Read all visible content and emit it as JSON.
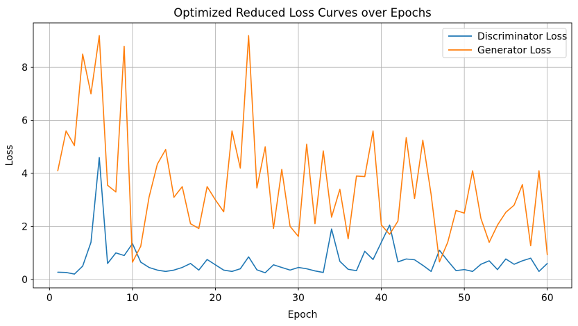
{
  "chart_data": {
    "type": "line",
    "title": "Optimized Reduced Loss Curves over Epochs",
    "xlabel": "Epoch",
    "ylabel": "Loss",
    "x": [
      1,
      2,
      3,
      4,
      5,
      6,
      7,
      8,
      9,
      10,
      11,
      12,
      13,
      14,
      15,
      16,
      17,
      18,
      19,
      20,
      21,
      22,
      23,
      24,
      25,
      26,
      27,
      28,
      29,
      30,
      31,
      32,
      33,
      34,
      35,
      36,
      37,
      38,
      39,
      40,
      41,
      42,
      43,
      44,
      45,
      46,
      47,
      48,
      49,
      50,
      51,
      52,
      53,
      54,
      55,
      56,
      57,
      58,
      59,
      60
    ],
    "series": [
      {
        "name": "Discriminator Loss",
        "color": "#1f77b4",
        "values": [
          0.27,
          0.26,
          0.2,
          0.5,
          1.4,
          4.6,
          0.6,
          1.0,
          0.9,
          1.35,
          0.65,
          0.45,
          0.35,
          0.3,
          0.35,
          0.45,
          0.6,
          0.35,
          0.75,
          0.55,
          0.35,
          0.3,
          0.4,
          0.85,
          0.36,
          0.25,
          0.55,
          0.45,
          0.35,
          0.45,
          0.4,
          0.32,
          0.26,
          1.9,
          0.68,
          0.38,
          0.33,
          1.06,
          0.75,
          1.4,
          2.05,
          0.66,
          0.77,
          0.74,
          0.53,
          0.3,
          1.1,
          0.7,
          0.33,
          0.37,
          0.3,
          0.57,
          0.7,
          0.37,
          0.77,
          0.57,
          0.7,
          0.8,
          0.3,
          0.6
        ]
      },
      {
        "name": "Generator Loss",
        "color": "#ff7f0e",
        "values": [
          4.1,
          5.6,
          5.05,
          8.5,
          7.0,
          9.2,
          3.55,
          3.3,
          8.8,
          0.65,
          1.25,
          3.1,
          4.35,
          4.9,
          3.1,
          3.5,
          2.1,
          1.92,
          3.5,
          3.0,
          2.55,
          5.6,
          4.2,
          9.2,
          3.45,
          5.0,
          1.92,
          4.15,
          2.0,
          1.62,
          5.1,
          2.1,
          4.85,
          2.35,
          3.4,
          1.53,
          3.9,
          3.88,
          5.6,
          2.05,
          1.7,
          2.2,
          5.35,
          3.05,
          5.25,
          3.2,
          0.66,
          1.4,
          2.6,
          2.5,
          4.1,
          2.3,
          1.4,
          2.05,
          2.53,
          2.8,
          3.58,
          1.27,
          4.1,
          0.93
        ]
      }
    ],
    "xticks": [
      0,
      10,
      20,
      30,
      40,
      50,
      60
    ],
    "yticks": [
      0,
      2,
      4,
      6,
      8
    ],
    "xlim": [
      -1.95,
      62.95
    ],
    "ylim": [
      -0.32,
      9.68
    ],
    "grid": true,
    "grid_color": "#b0b0b0",
    "spine_color": "#000000",
    "background": "#ffffff",
    "legend_position": "upper right"
  }
}
